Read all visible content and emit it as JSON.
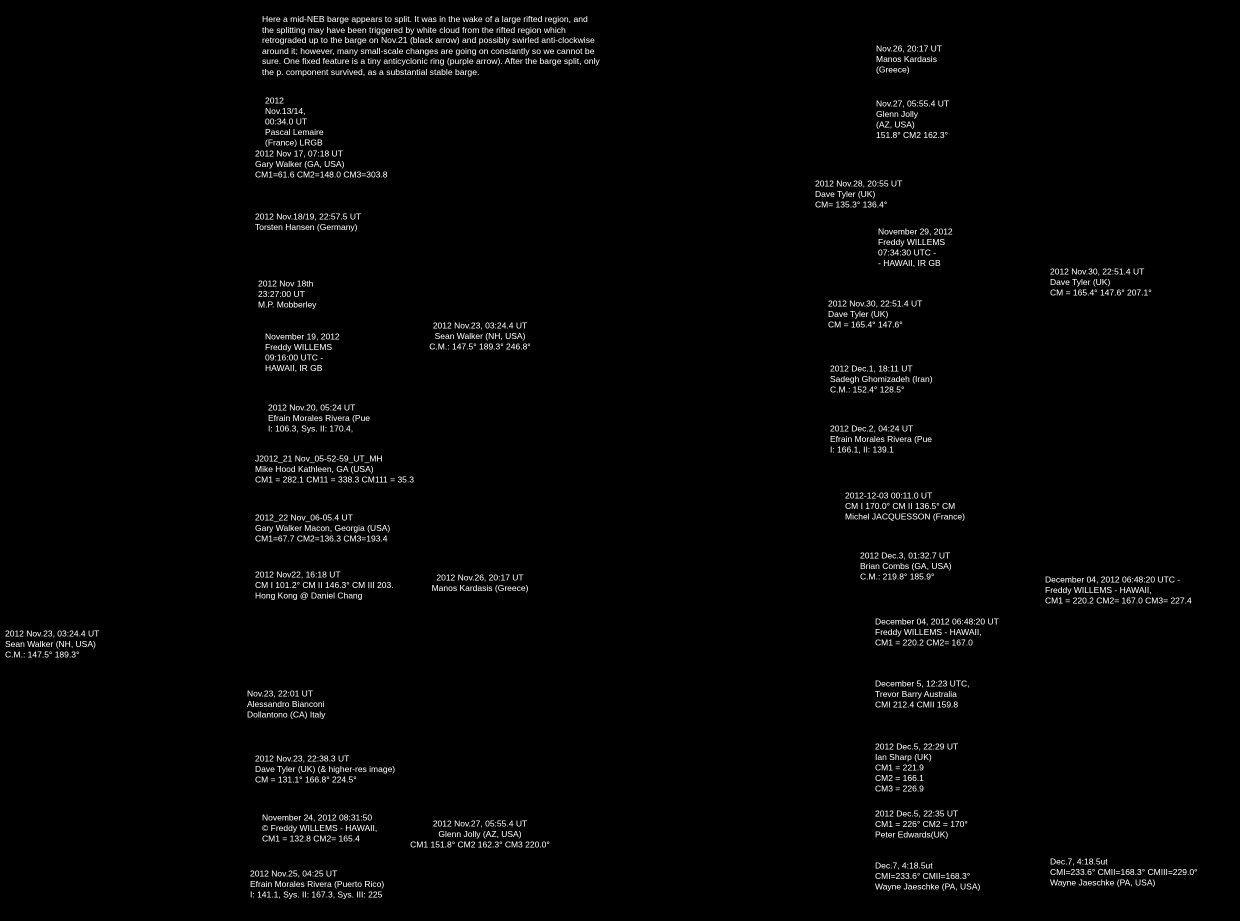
{
  "intro": "Here a mid-NEB barge appears to split.  It was in the wake of a large rifted region, and the splitting may have been triggered by white cloud from the rifted region which retrograded up to the barge on Nov.21 (black arrow) and possibly swirled anti-clockwise around it; however, many small-scale changes are going on constantly so we cannot be sure. One fixed feature is a tiny anticyclonic ring (purple arrow).  After the barge split, only the p. component survived, as a substantial stable barge.",
  "left_strips": [
    {
      "caption": [
        "2012",
        "Nov.13/14,",
        "00:34.0 UT",
        "Pascal Lemaire",
        "(France) LRGB"
      ]
    },
    {
      "caption": [
        "2012 Nov 17, 07:18 UT",
        "Gary Walker (GA, USA)",
        "CM1=61.6 CM2=148.0 CM3=303.8"
      ]
    },
    {
      "caption": [
        "2012 Nov.18/19, 22:57.5 UT",
        "Torsten Hansen (Germany)"
      ]
    },
    {
      "caption": [
        "2012 Nov 18th",
        "23:27:00 UT",
        "M.P. Mobberley"
      ]
    },
    {
      "caption": [
        "November 19, 2012",
        "Freddy WILLEMS",
        "09:16:00 UTC -",
        "HAWAII,  IR GB"
      ]
    },
    {
      "caption": [
        "2012 Nov.20, 05:24 UT",
        "Efrain Morales Rivera (Pue",
        "I: 106.3, Sys. II: 170.4,"
      ]
    },
    {
      "caption": [
        "J2012_21 Nov_05-52-59_UT_MH",
        "Mike Hood  Kathleen, GA  (USA)",
        "CM1 = 282.1  CM11 = 338.3  CM111 = 35.3"
      ]
    },
    {
      "caption": [
        "2012_22 Nov_06-05.4 UT",
        "Gary Walker     Macon, Georgia (USA)",
        "CM1=67.7 CM2=136.3 CM3=193.4"
      ]
    },
    {
      "caption": [
        "2012 Nov22, 16:18 UT",
        "CM I 101.2° CM II 146.3° CM III 203.",
        "Hong Kong @ Daniel Chang"
      ]
    },
    {
      "caption": [
        "2012 Nov.23, 03:24.4 UT",
        "Sean Walker (NH, USA)",
        "C.M.:  147.5°  189.3°"
      ]
    },
    {
      "caption": [
        "Nov.23, 22:01 UT",
        "Alessandro Bianconi",
        "Dollantono (CA) Italy"
      ]
    },
    {
      "caption": [
        "2012 Nov.23, 22:38.3 UT",
        "Dave Tyler (UK) (& higher-res image)",
        "CM = 131.1°   166.8°   224.5°"
      ]
    },
    {
      "caption": [
        "November 24, 2012  08:31:50",
        "© Freddy WILLEMS  -  HAWAII,",
        "CM1 = 132.8  CM2= 165.4"
      ]
    },
    {
      "caption": [
        "2012 Nov.25, 04:25 UT",
        "Efrain Morales Rivera (Puerto Rico)",
        "I: 141.1, Sys. II: 167.3, Sys. III: 225"
      ]
    }
  ],
  "discs": [
    {
      "caption": [
        "2012 Nov.23, 03:24.4 UT",
        "Sean Walker (NH, USA)",
        "C.M.:   147.5°   189.3°   246.8°"
      ]
    },
    {
      "caption": [
        "2012 Nov.26, 20:17 UT",
        "Manos Kardasis (Greece)"
      ]
    },
    {
      "caption": [
        "2012 Nov.27, 05:55.4 UT",
        "Glenn Jolly (AZ, USA)",
        "CM1  151.8°  CM2  162.3°  CM3  220.0°"
      ]
    }
  ],
  "right_strips": [
    {
      "caption": [
        "Nov.26, 20:17 UT",
        "Manos Kardasis",
        "(Greece)"
      ]
    },
    {
      "caption": [
        "Nov.27, 05:55.4 UT",
        "Glenn Jolly",
        "(AZ, USA)",
        "151.8°  CM2 162.3°"
      ]
    },
    {
      "caption": [
        "2012 Nov.28, 20:55 UT",
        "Dave Tyler (UK)",
        "CM= 135.3°   136.4°"
      ]
    },
    {
      "caption": [
        "November 29, 2012",
        "Freddy WILLEMS",
        "07:34:30 UTC -",
        "- HAWAII,   IR GB"
      ]
    },
    {
      "caption": [
        "2012 Nov.30, 22:51.4 UT",
        "Dave Tyler (UK)",
        "CM = 165.4°   147.6°"
      ]
    },
    {
      "caption": [
        "2012 Dec.1, 18:11 UT",
        "Sadegh Ghomizadeh (Iran)",
        "C.M.:  152.4°  128.5°"
      ]
    },
    {
      "caption": [
        "2012 Dec.2, 04:24 UT",
        "Efrain Morales Rivera (Pue",
        "I: 166.1,  II: 139.1"
      ]
    },
    {
      "caption": [
        "2012-12-03  00:11.0 UT",
        "CM I 170.0° CM II 136.5° CM",
        "Michel JACQUESSON  (France)"
      ]
    },
    {
      "caption": [
        "2012 Dec.3, 01:32.7 UT",
        "Brian Combs (GA, USA)",
        "C.M.:  219.8°  185.9°"
      ]
    },
    {
      "caption": [
        "December 04, 2012  06:48:20  UT",
        "Freddy WILLEMS  -  HAWAII,",
        "CM1 = 220.2  CM2= 167.0"
      ]
    },
    {
      "caption": [
        "December 5, 12:23 UTC,",
        "Trevor Barry Australia",
        "CMI 212.4  CMII 159.8"
      ]
    },
    {
      "caption": [
        "2012 Dec.5, 22:29 UT",
        "Ian Sharp (UK)",
        "CM1 = 221.9",
        "CM2 = 166.1",
        "CM3 = 226.9"
      ]
    },
    {
      "caption": [
        "2012 Dec.5, 22:35 UT",
        "CM1 = 226° CM2 = 170°",
        "Peter Edwards(UK)"
      ]
    },
    {
      "caption": [
        "Dec.7,   4:18.5ut",
        "CMI=233.6° CMII=168.3°",
        "Wayne Jaeschke (PA, USA)"
      ]
    }
  ],
  "right_discs": [
    {
      "caption": [
        "2012 Nov.30, 22:51.4 UT",
        "Dave Tyler (UK)",
        "CM = 165.4°   147.6°   207.1°"
      ]
    },
    {
      "caption": [
        "December 04, 2012  06:48:20  UTC -",
        "Freddy WILLEMS  -  HAWAII,",
        "CM1 = 220.2  CM2= 167.0  CM3= 227.4"
      ]
    },
    {
      "caption": [
        "Dec.7,   4:18.5ut",
        "CMI=233.6° CMII=168.3° CMIII=229.0°",
        "Wayne Jaeschke (PA, USA)"
      ]
    }
  ]
}
